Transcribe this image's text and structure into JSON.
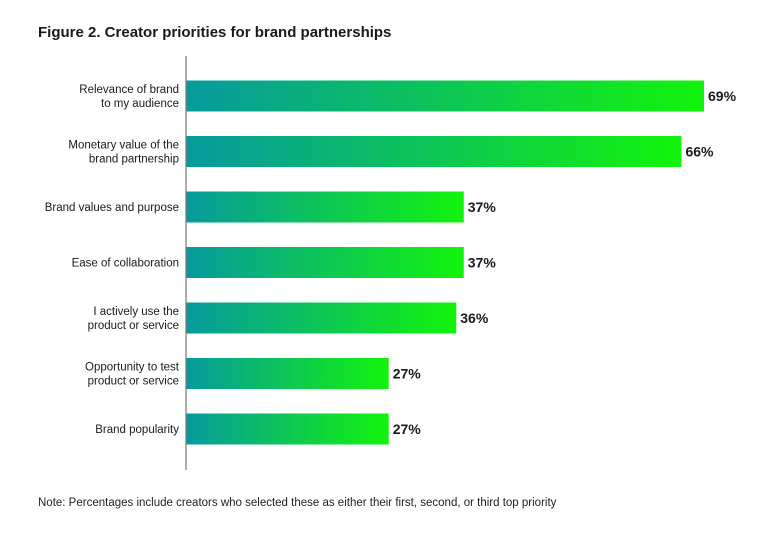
{
  "title": "Figure 2. Creator priorities for brand partnerships",
  "note": "Note: Percentages include creators who selected these as either their first, second, or third top priority",
  "colors": {
    "bar_start": "#079a9e",
    "bar_end": "#13f30c",
    "axis": "#777777"
  },
  "chart_data": {
    "type": "bar",
    "orientation": "horizontal",
    "categories": [
      [
        "Relevance of brand",
        "to my audience"
      ],
      [
        "Monetary value of the",
        "brand partnership"
      ],
      [
        "Brand values and purpose"
      ],
      [
        "Ease of collaboration"
      ],
      [
        "I actively use the",
        "product or service"
      ],
      [
        "Opportunity to test",
        "product or service"
      ],
      [
        "Brand popularity"
      ]
    ],
    "values": [
      69,
      66,
      37,
      37,
      36,
      27,
      27
    ],
    "value_labels": [
      "69%",
      "66%",
      "37%",
      "37%",
      "36%",
      "27%",
      "27%"
    ],
    "xlim": [
      0,
      69
    ],
    "grid": false,
    "legend": "none"
  }
}
